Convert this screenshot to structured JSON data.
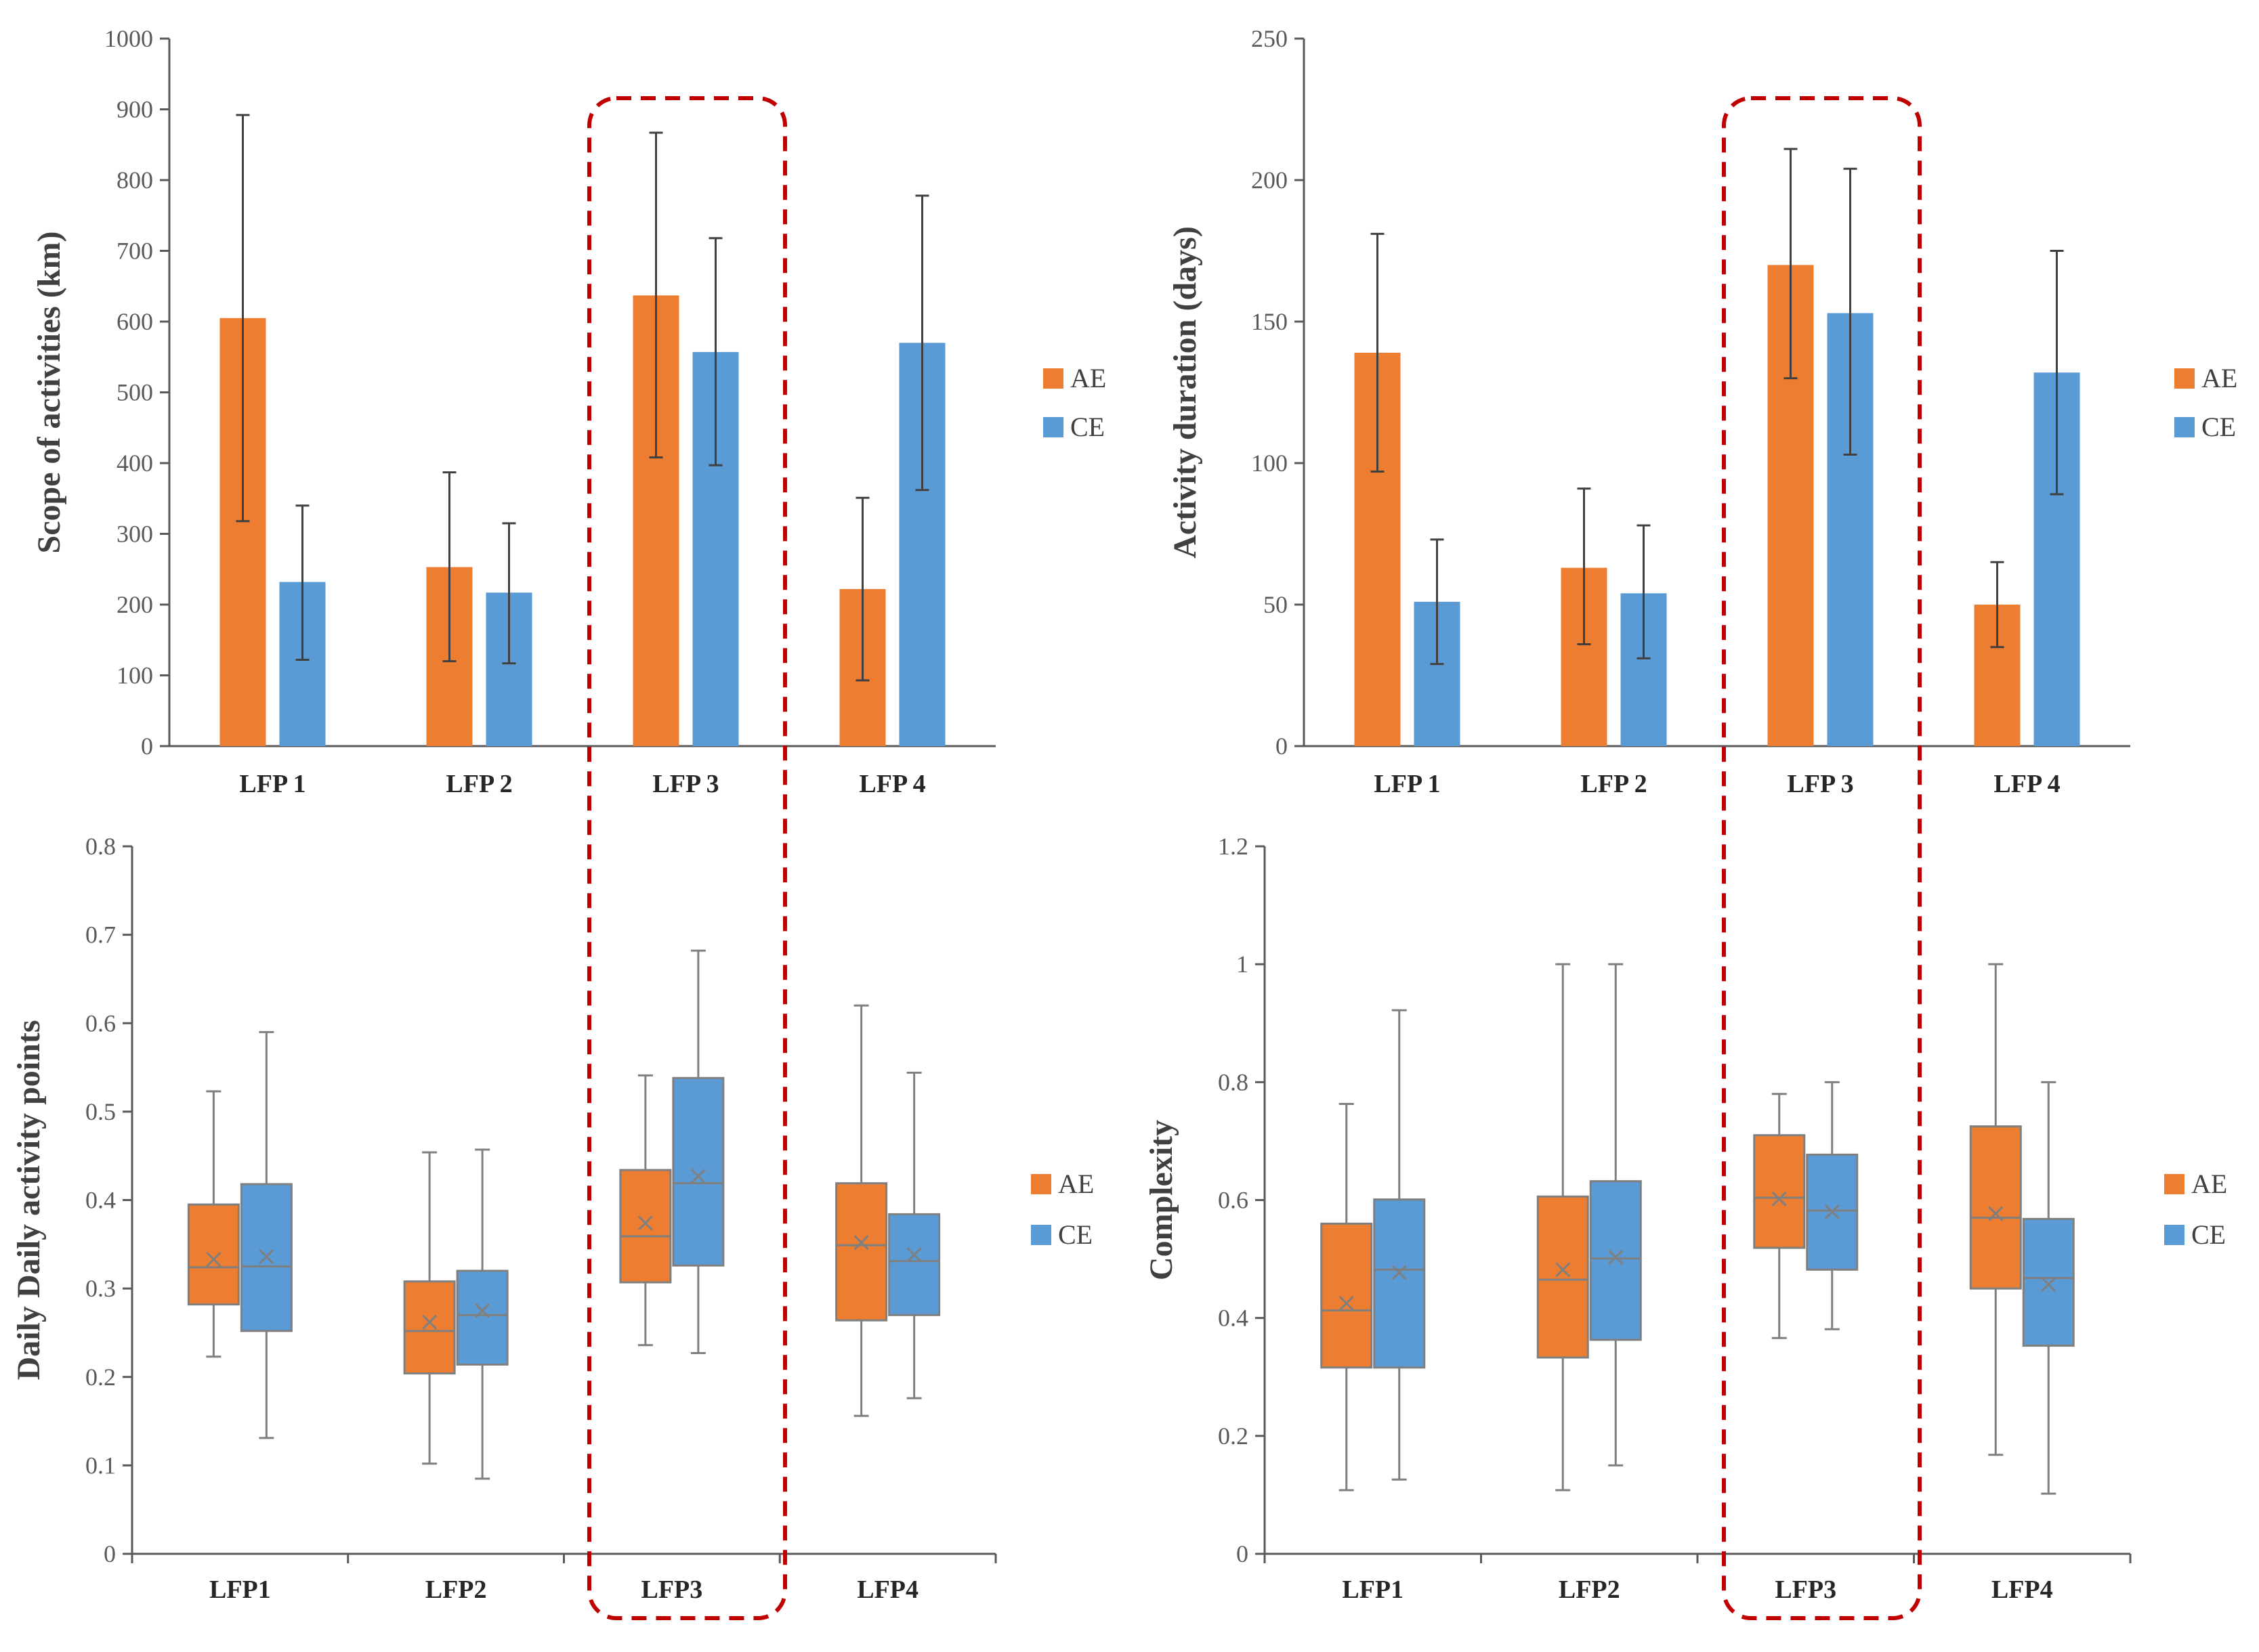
{
  "colors": {
    "AE": "#ED7D31",
    "CE": "#5B9BD5",
    "highlight": "#C00000",
    "axis": "#595959",
    "whisker": "#7F7F7F"
  },
  "highlight_category_index": 2,
  "chart_data": [
    {
      "id": "scope",
      "type": "bar",
      "ylabel": "Scope of activities (km)",
      "ylim": [
        0,
        1000
      ],
      "yticks": [
        0,
        100,
        200,
        300,
        400,
        500,
        600,
        700,
        800,
        900,
        1000
      ],
      "categories": [
        "LFP 1",
        "LFP 2",
        "LFP 3",
        "LFP 4"
      ],
      "legend_position": "right",
      "series": [
        {
          "name": "AE",
          "values": [
            605,
            253,
            637,
            222
          ],
          "err_low": [
            318,
            120,
            408,
            93
          ],
          "err_high": [
            892,
            387,
            867,
            351
          ]
        },
        {
          "name": "CE",
          "values": [
            232,
            217,
            557,
            570
          ],
          "err_low": [
            122,
            117,
            397,
            362
          ],
          "err_high": [
            340,
            315,
            718,
            778
          ]
        }
      ]
    },
    {
      "id": "duration",
      "type": "bar",
      "ylabel": "Activity duration (days)",
      "ylim": [
        0,
        250
      ],
      "yticks": [
        0,
        50,
        100,
        150,
        200,
        250
      ],
      "categories": [
        "LFP 1",
        "LFP 2",
        "LFP 3",
        "LFP 4"
      ],
      "legend_position": "right",
      "series": [
        {
          "name": "AE",
          "values": [
            139,
            63,
            170,
            50
          ],
          "err_low": [
            97,
            36,
            130,
            35
          ],
          "err_high": [
            181,
            91,
            211,
            65
          ]
        },
        {
          "name": "CE",
          "values": [
            51,
            54,
            153,
            132
          ],
          "err_low": [
            29,
            31,
            103,
            89
          ],
          "err_high": [
            73,
            78,
            204,
            175
          ]
        }
      ]
    },
    {
      "id": "daily",
      "type": "box",
      "ylabel": "Daily Daily activity points",
      "ylim": [
        0,
        0.8
      ],
      "yticks": [
        0,
        0.1,
        0.2,
        0.3,
        0.4,
        0.5,
        0.6,
        0.7,
        0.8
      ],
      "categories": [
        "LFP1",
        "LFP2",
        "LFP3",
        "LFP4"
      ],
      "legend_position": "right",
      "series": [
        {
          "name": "AE",
          "boxes": [
            {
              "min": 0.223,
              "q1": 0.282,
              "median": 0.324,
              "q3": 0.395,
              "max": 0.523,
              "mean": 0.333
            },
            {
              "min": 0.102,
              "q1": 0.204,
              "median": 0.252,
              "q3": 0.308,
              "max": 0.454,
              "mean": 0.262
            },
            {
              "min": 0.236,
              "q1": 0.307,
              "median": 0.359,
              "q3": 0.434,
              "max": 0.541,
              "mean": 0.374
            },
            {
              "min": 0.156,
              "q1": 0.264,
              "median": 0.349,
              "q3": 0.419,
              "max": 0.62,
              "mean": 0.352
            }
          ]
        },
        {
          "name": "CE",
          "boxes": [
            {
              "min": 0.131,
              "q1": 0.252,
              "median": 0.325,
              "q3": 0.418,
              "max": 0.59,
              "mean": 0.336
            },
            {
              "min": 0.085,
              "q1": 0.214,
              "median": 0.27,
              "q3": 0.32,
              "max": 0.457,
              "mean": 0.275
            },
            {
              "min": 0.227,
              "q1": 0.326,
              "median": 0.419,
              "q3": 0.538,
              "max": 0.682,
              "mean": 0.427
            },
            {
              "min": 0.176,
              "q1": 0.27,
              "median": 0.331,
              "q3": 0.384,
              "max": 0.544,
              "mean": 0.338
            }
          ]
        }
      ]
    },
    {
      "id": "complexity",
      "type": "box",
      "ylabel": "Complexity",
      "ylim": [
        0,
        1.2
      ],
      "yticks": [
        0,
        0.2,
        0.4,
        0.6,
        0.8,
        1,
        1.2
      ],
      "categories": [
        "LFP1",
        "LFP2",
        "LFP3",
        "LFP4"
      ],
      "legend_position": "right",
      "series": [
        {
          "name": "AE",
          "boxes": [
            {
              "min": 0.108,
              "q1": 0.316,
              "median": 0.413,
              "q3": 0.56,
              "max": 0.763,
              "mean": 0.425
            },
            {
              "min": 0.108,
              "q1": 0.333,
              "median": 0.465,
              "q3": 0.606,
              "max": 1.0,
              "mean": 0.482
            },
            {
              "min": 0.366,
              "q1": 0.519,
              "median": 0.604,
              "q3": 0.71,
              "max": 0.78,
              "mean": 0.602
            },
            {
              "min": 0.168,
              "q1": 0.45,
              "median": 0.57,
              "q3": 0.725,
              "max": 1.0,
              "mean": 0.577
            }
          ]
        },
        {
          "name": "CE",
          "boxes": [
            {
              "min": 0.126,
              "q1": 0.316,
              "median": 0.482,
              "q3": 0.601,
              "max": 0.922,
              "mean": 0.477
            },
            {
              "min": 0.15,
              "q1": 0.363,
              "median": 0.501,
              "q3": 0.632,
              "max": 1.0,
              "mean": 0.503
            },
            {
              "min": 0.381,
              "q1": 0.482,
              "median": 0.582,
              "q3": 0.677,
              "max": 0.8,
              "mean": 0.58
            },
            {
              "min": 0.102,
              "q1": 0.353,
              "median": 0.468,
              "q3": 0.568,
              "max": 0.8,
              "mean": 0.457
            }
          ]
        }
      ]
    }
  ]
}
